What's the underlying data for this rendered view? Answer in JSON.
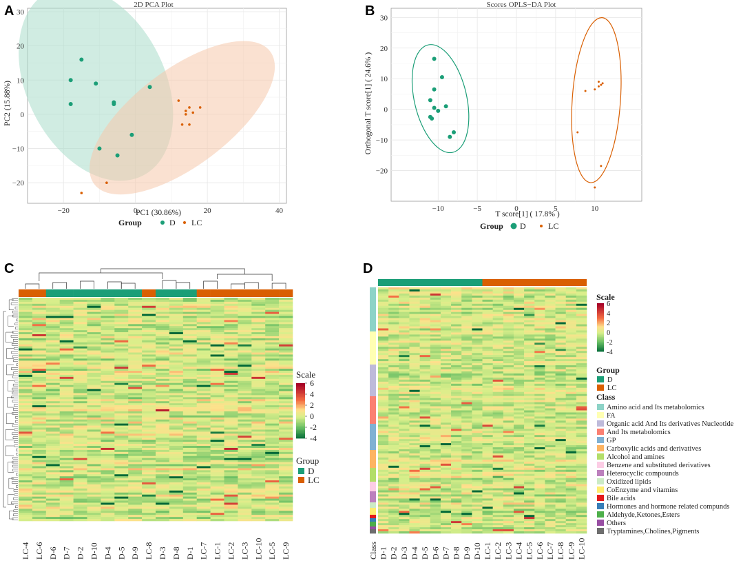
{
  "panels": {
    "A": "A",
    "B": "B",
    "C": "C",
    "D": "D"
  },
  "colors": {
    "D": "#1b9e77",
    "LC": "#d95f02",
    "D_ellipse": "#a9dccb",
    "LC_ellipse": "#f6c8ab"
  },
  "chart_data": [
    {
      "type": "scatter",
      "title": "2D PCA Plot",
      "xlabel": "PC1 (30.86%)",
      "ylabel": "PC2 (15.88%)",
      "xlim": [
        -30,
        42
      ],
      "ylim": [
        -26,
        31
      ],
      "xticks": [
        -20,
        0,
        20,
        40
      ],
      "xtick_labels": [
        "−20",
        "0",
        "20",
        "40"
      ],
      "yticks": [
        -20,
        -10,
        0,
        10,
        20,
        30
      ],
      "ytick_labels": [
        "−20",
        "−10",
        "0",
        "10",
        "20",
        "30"
      ],
      "legend_title": "Group",
      "series": [
        {
          "name": "D",
          "points": [
            [
              -15,
              16
            ],
            [
              -18,
              10
            ],
            [
              -11,
              9
            ],
            [
              -18,
              3
            ],
            [
              -6,
              3
            ],
            [
              -6,
              3.5
            ],
            [
              4,
              8
            ],
            [
              -1,
              -6
            ],
            [
              -10,
              -10
            ],
            [
              -5,
              -12
            ]
          ]
        },
        {
          "name": "LC",
          "points": [
            [
              12,
              4
            ],
            [
              14,
              1
            ],
            [
              15,
              2
            ],
            [
              16,
              0.5
            ],
            [
              14,
              0
            ],
            [
              18,
              2
            ],
            [
              13,
              -3
            ],
            [
              15,
              -3
            ],
            [
              -15,
              -23
            ],
            [
              -8,
              -20
            ]
          ]
        }
      ]
    },
    {
      "type": "scatter",
      "title": "Scores OPLS−DA Plot",
      "xlabel": "T score[1] ( 17.8% )",
      "ylabel": "Orthogonal T score[1] ( 24.6% )",
      "xlim": [
        -16,
        16
      ],
      "ylim": [
        -30,
        33
      ],
      "xticks": [
        -10,
        -5,
        0,
        5,
        10
      ],
      "xtick_labels": [
        "−10",
        "−5",
        "0",
        "5",
        "10"
      ],
      "yticks": [
        -20,
        -10,
        0,
        10,
        20,
        30
      ],
      "ytick_labels": [
        "−20",
        "−10",
        "0",
        "10",
        "20",
        "30"
      ],
      "legend_title": "Group",
      "series": [
        {
          "name": "D",
          "points": [
            [
              -10.5,
              16.5
            ],
            [
              -9.5,
              10.5
            ],
            [
              -10.5,
              6.5
            ],
            [
              -11,
              3
            ],
            [
              -10.5,
              0.5
            ],
            [
              -10,
              -0.5
            ],
            [
              -9,
              1
            ],
            [
              -11,
              -2.5
            ],
            [
              -10.8,
              -3
            ],
            [
              -8,
              -7.5
            ],
            [
              -8.5,
              -9
            ]
          ]
        },
        {
          "name": "LC",
          "points": [
            [
              10.5,
              9
            ],
            [
              10.8,
              8
            ],
            [
              11,
              8.5
            ],
            [
              10.5,
              7.5
            ],
            [
              10,
              6.5
            ],
            [
              8.8,
              6
            ],
            [
              10.8,
              -18.5
            ],
            [
              10,
              -25.5
            ],
            [
              7.8,
              -7.5
            ]
          ]
        }
      ]
    },
    {
      "type": "heatmap",
      "columns": [
        "LC-4",
        "LC-6",
        "D-6",
        "D-7",
        "D-2",
        "D-10",
        "D-4",
        "D-5",
        "D-9",
        "LC-8",
        "D-3",
        "D-8",
        "D-1",
        "LC-7",
        "LC-1",
        "LC-2",
        "LC-3",
        "LC-10",
        "LC-5",
        "LC-9"
      ],
      "column_groups": [
        "LC",
        "LC",
        "D",
        "D",
        "D",
        "D",
        "D",
        "D",
        "D",
        "LC",
        "D",
        "D",
        "D",
        "LC",
        "LC",
        "LC",
        "LC",
        "LC",
        "LC",
        "LC"
      ],
      "scale_title": "Scale",
      "scale_ticks": [
        "6",
        "4",
        "2",
        "0",
        "-2",
        "-4"
      ],
      "legend_title": "Group",
      "legend_items": [
        "D",
        "LC"
      ]
    },
    {
      "type": "heatmap",
      "columns": [
        "D-1",
        "D-2",
        "D-3",
        "D-4",
        "D-5",
        "D-6",
        "D-7",
        "D-8",
        "D-9",
        "D-10",
        "LC-1",
        "LC-2",
        "LC-3",
        "LC-4",
        "LC-5",
        "LC-6",
        "LC-7",
        "LC-8",
        "LC-9",
        "LC-10"
      ],
      "row_annotation_label": "Class",
      "scale_title": "Scale",
      "scale_ticks": [
        "6",
        "4",
        "2",
        "0",
        "-2",
        "-4"
      ],
      "group_title": "Group",
      "group_items": [
        "D",
        "LC"
      ],
      "class_title": "Class",
      "class_items": [
        {
          "label": "Amino acid  and Its metabolomics",
          "color": "#8dd3c7"
        },
        {
          "label": "FA",
          "color": "#ffffb3"
        },
        {
          "label": "Organic acid And  Its derivatives Nucleotide",
          "color": "#bebada"
        },
        {
          "label": "And  Its metabolomics",
          "color": "#fb8072"
        },
        {
          "label": "GP",
          "color": "#80b1d3"
        },
        {
          "label": "Carboxylic acids and derivatives",
          "color": "#fdb462"
        },
        {
          "label": "Alcohol and amines",
          "color": "#b3de69"
        },
        {
          "label": "Benzene and substituted derivatives",
          "color": "#fccde5"
        },
        {
          "label": "Heterocyclic compounds",
          "color": "#bc80bd"
        },
        {
          "label": "Oxidized lipids",
          "color": "#ccebc5"
        },
        {
          "label": "CoEnzyme and vitamins",
          "color": "#ffed6f"
        },
        {
          "label": "Bile acids",
          "color": "#e41a1c"
        },
        {
          "label": "Hormones and hormone related compunds",
          "color": "#377eb8"
        },
        {
          "label": "Aldehyde,Ketones,Esters",
          "color": "#4daf4a"
        },
        {
          "label": "Others",
          "color": "#984ea3"
        },
        {
          "label": "Tryptamines,Cholines,Pigments",
          "color": "#6e6e6e"
        }
      ]
    }
  ]
}
